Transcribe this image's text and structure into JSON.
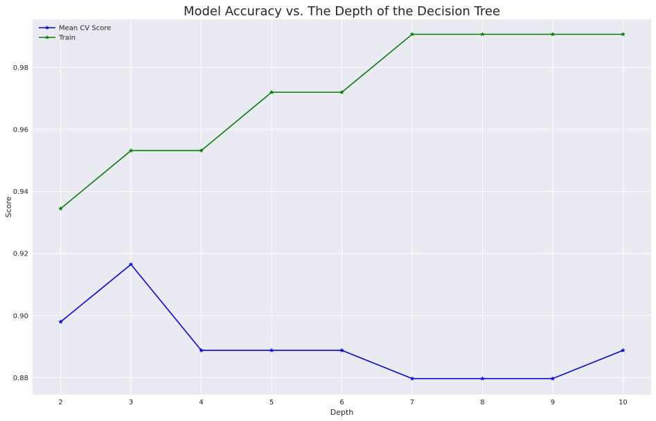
{
  "chart_data": {
    "type": "line",
    "title": "Model Accuracy vs. The Depth of the Decision Tree",
    "xlabel": "Depth",
    "ylabel": "Score",
    "x": [
      2,
      3,
      4,
      5,
      6,
      7,
      8,
      9,
      10
    ],
    "xticks": [
      2,
      3,
      4,
      5,
      6,
      7,
      8,
      9,
      10
    ],
    "xlim": [
      1.6,
      10.4
    ],
    "yticks": [
      0.88,
      0.9,
      0.92,
      0.94,
      0.96,
      0.98
    ],
    "ylim": [
      0.8745,
      0.9955
    ],
    "grid": true,
    "legend": "top-left",
    "series": [
      {
        "name": "Mean CV Score",
        "color": "#0000ff",
        "marker": "star",
        "values": [
          0.898,
          0.9165,
          0.8888,
          0.8888,
          0.8888,
          0.8797,
          0.8797,
          0.8797,
          0.8888
        ]
      },
      {
        "name": "Train",
        "color": "#008000",
        "marker": "star",
        "values": [
          0.9345,
          0.9532,
          0.9532,
          0.972,
          0.972,
          0.9907,
          0.9907,
          0.9907,
          0.9907
        ]
      }
    ]
  },
  "style": {
    "plot_background": "#eaeaf2",
    "grid_color": "#ffffff"
  }
}
